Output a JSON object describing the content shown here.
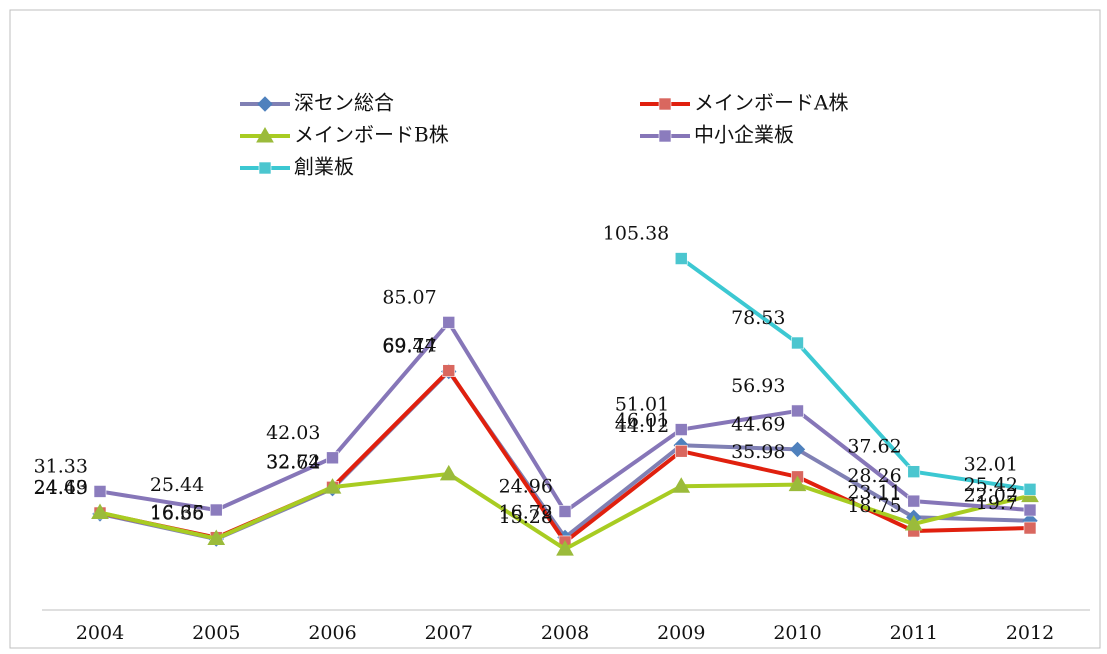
{
  "chart_data": {
    "type": "line",
    "categories": [
      "2004",
      "2005",
      "2006",
      "2007",
      "2008",
      "2009",
      "2010",
      "2011",
      "2012"
    ],
    "ylim": [
      0,
      110
    ],
    "series": [
      {
        "name": "深セン総合",
        "color": "#8080b4",
        "marker_color": "#4f81bd",
        "marker": "diamond",
        "values": [
          24.2,
          16.2,
          32.2,
          69.47,
          16.72,
          46.01,
          44.69,
          23.11,
          22.02
        ],
        "value_labels": [
          null,
          null,
          null,
          "69.47",
          "16.72",
          "46.01",
          "44.69",
          "23.11",
          "22.02"
        ]
      },
      {
        "name": "メインボードA株",
        "color": "#e0200e",
        "marker_color": "#d9675f",
        "marker": "square",
        "values": [
          24.49,
          16.65,
          32.64,
          69.74,
          15.28,
          44.12,
          35.98,
          18.75,
          19.7
        ],
        "value_labels": [
          "24.49",
          "16.65",
          "32.64",
          "69.74",
          "15.28",
          "44.12",
          "35.98",
          "18.75",
          "19.7"
        ]
      },
      {
        "name": "メインボードB株",
        "color": "#a8cc22",
        "marker_color": "#9bbb3b",
        "marker": "triangle",
        "values": [
          24.63,
          16.36,
          32.72,
          36.9,
          13,
          33,
          33.5,
          21,
          30
        ],
        "value_labels": [
          "24.63",
          "16.36",
          "32.72",
          null,
          null,
          null,
          null,
          null,
          null
        ]
      },
      {
        "name": "中小企業板",
        "color": "#8676b8",
        "marker_color": "#8b7cbd",
        "marker": "square",
        "values": [
          31.33,
          25.44,
          42.03,
          85.07,
          24.96,
          51.01,
          56.93,
          28.26,
          25.42
        ],
        "value_labels": [
          "31.33",
          "25.44",
          "42.03",
          "85.07",
          "24.96",
          "51.01",
          "56.93",
          "28.26",
          "25.42"
        ]
      },
      {
        "name": "創業板",
        "color": "#3cc8d2",
        "marker_color": "#4bc6cf",
        "marker": "square",
        "values": [
          null,
          null,
          null,
          null,
          null,
          105.38,
          78.53,
          37.62,
          32.01
        ],
        "value_labels": [
          null,
          null,
          null,
          null,
          null,
          "105.38",
          "78.53",
          "37.62",
          "32.01"
        ]
      }
    ]
  }
}
